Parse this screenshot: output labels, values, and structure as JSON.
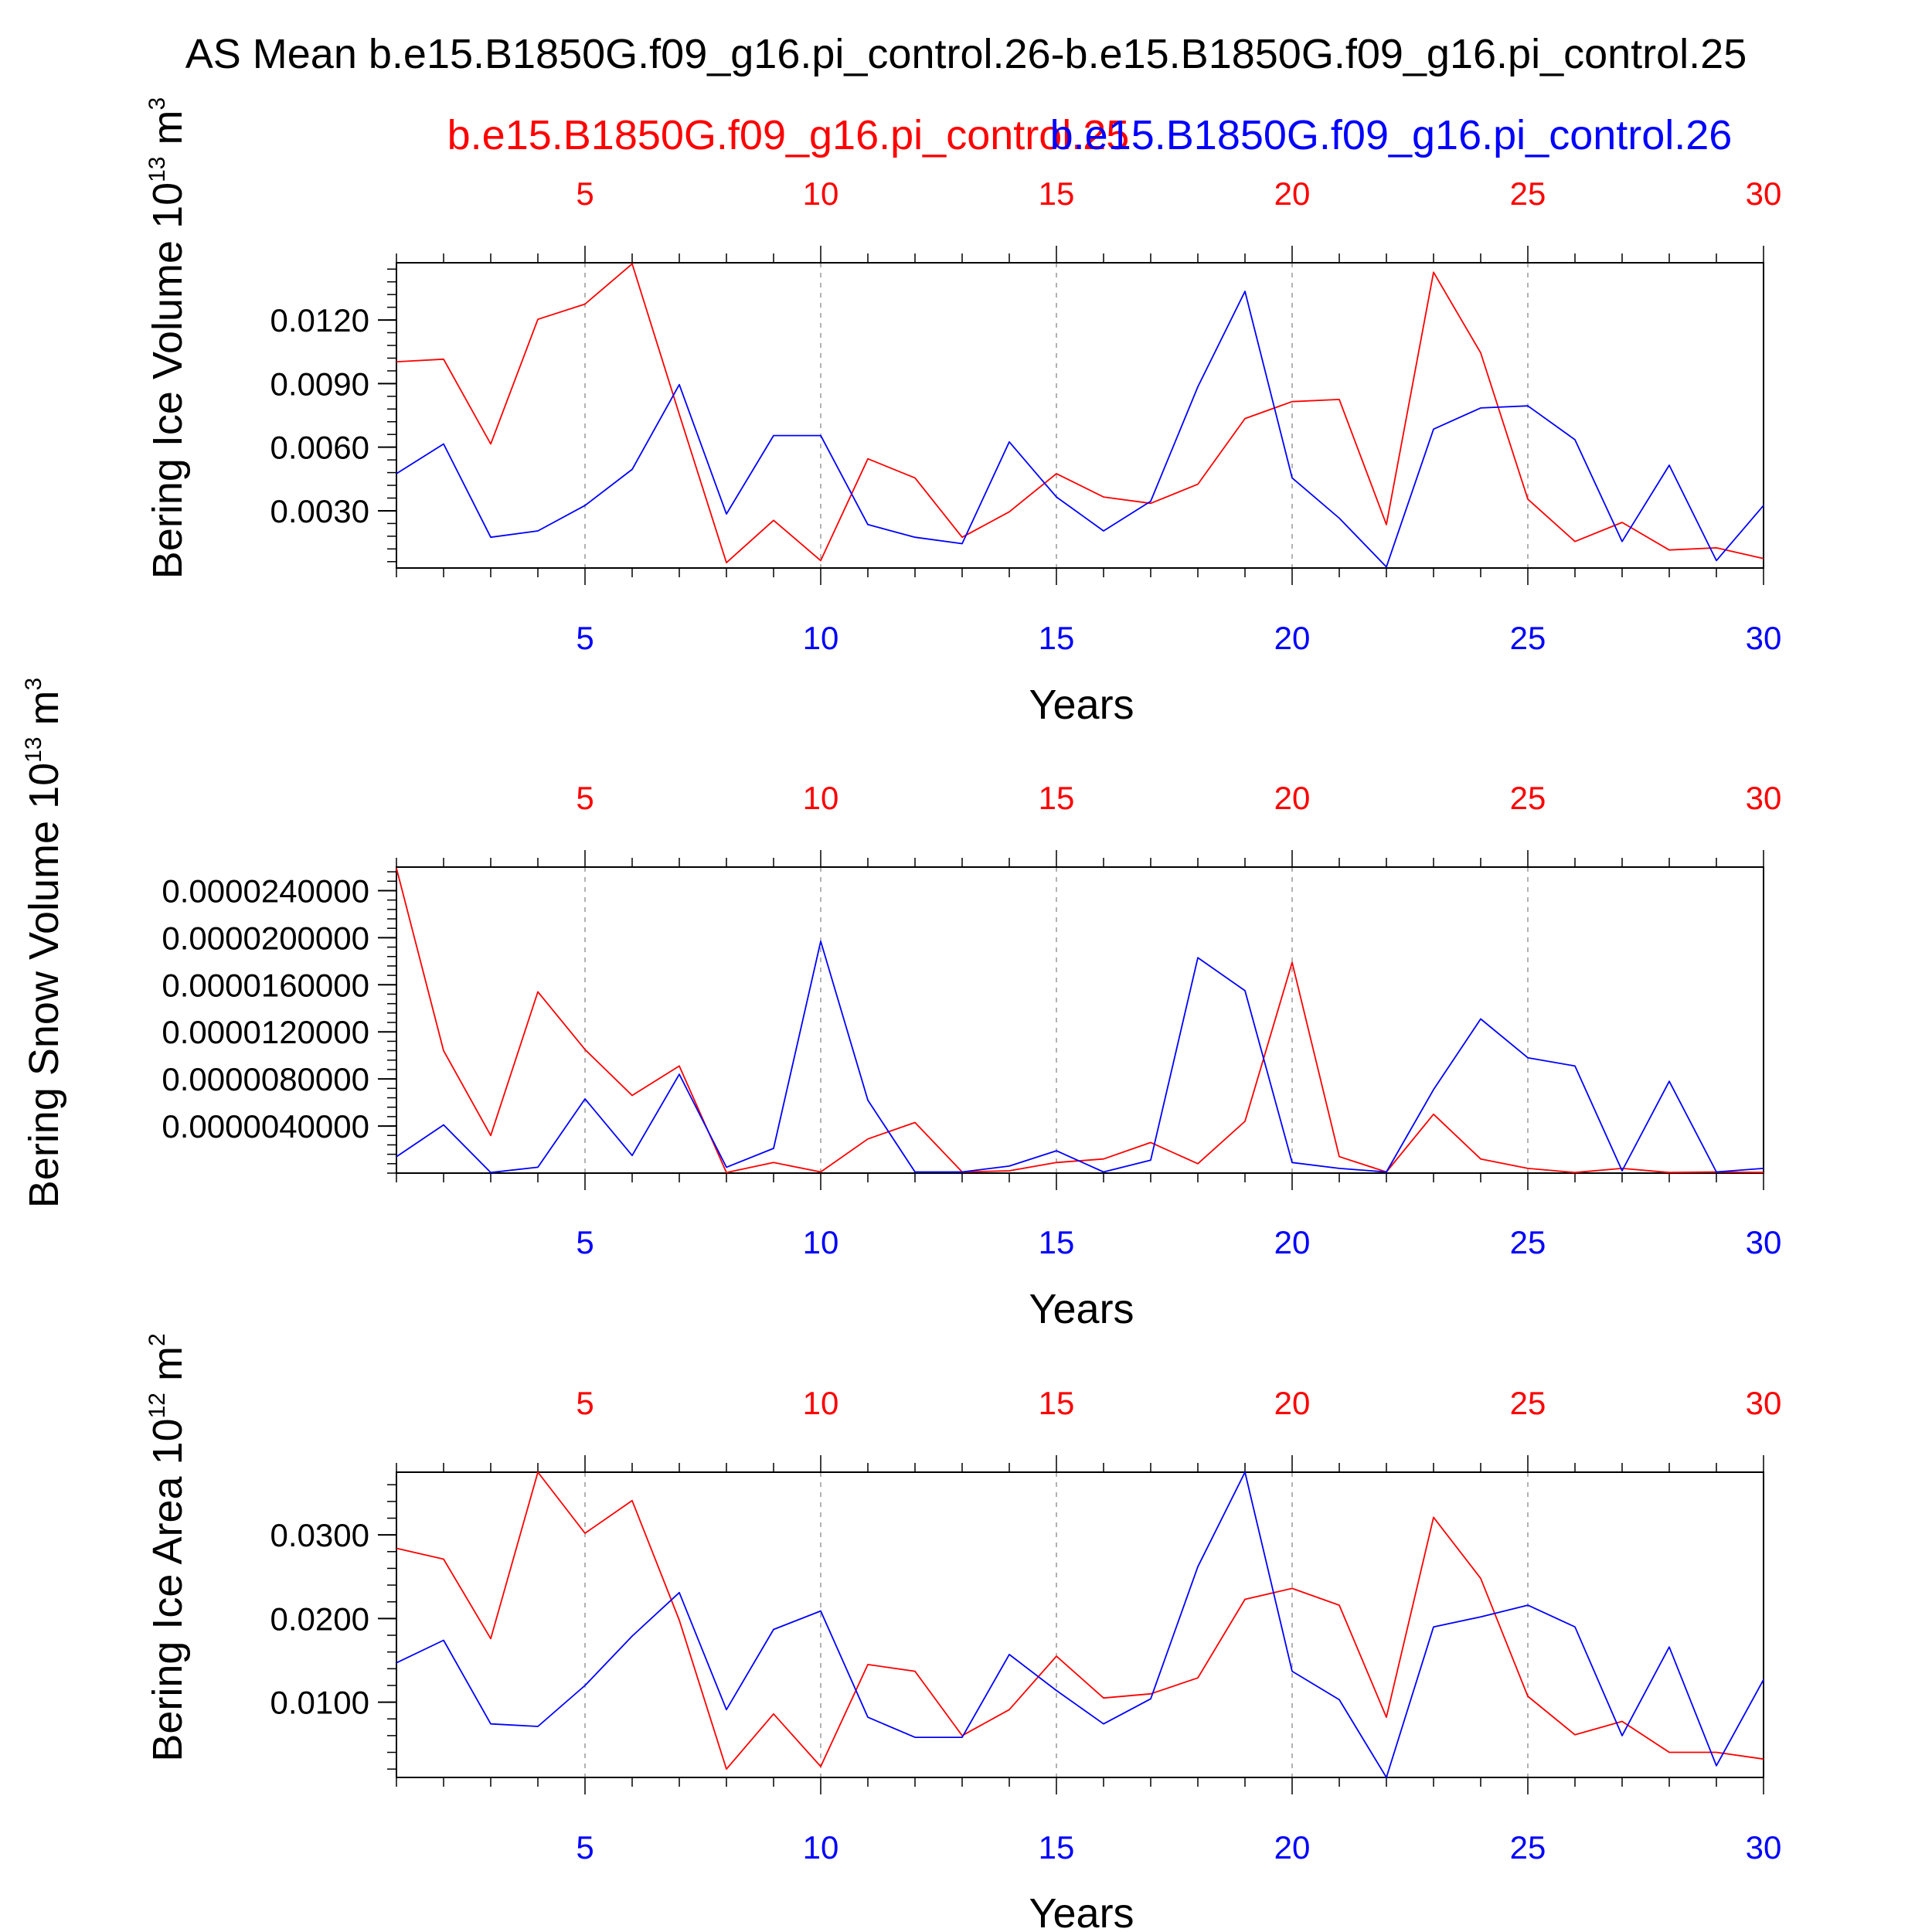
{
  "figure": {
    "title": "AS Mean b.e15.B1850G.f09_g16.pi_control.26-b.e15.B1850G.f09_g16.pi_control.25",
    "legend": {
      "red_label": "b.e15.B1850G.f09_g16.pi_control.25",
      "blue_label": "b.e15.B1850G.f09_g16.pi_control.26"
    },
    "colors": {
      "red": "#ff0000",
      "blue": "#0000ff",
      "axis": "#000000",
      "grid": "#999999"
    }
  },
  "chart_data": [
    {
      "type": "line",
      "title": "",
      "xlabel": "Years",
      "ylabel": "Bering Ice Volume 10",
      "ylabel_exp": "13",
      "ylabel_unit": " m",
      "ylabel_unit_exp": "3",
      "xlim": [
        1,
        30
      ],
      "ylim": [
        0.0003,
        0.0147
      ],
      "x_ticks": [
        "5",
        "10",
        "15",
        "20",
        "25",
        "30"
      ],
      "y_ticks": [
        {
          "value": 0.003,
          "label": "0.0030"
        },
        {
          "value": 0.006,
          "label": "0.0060"
        },
        {
          "value": 0.009,
          "label": "0.0090"
        },
        {
          "value": 0.012,
          "label": "0.0120"
        }
      ],
      "x": [
        1,
        2,
        3,
        4,
        5,
        6,
        7,
        8,
        9,
        10,
        11,
        12,
        13,
        14,
        15,
        16,
        17,
        18,
        19,
        20,
        21,
        22,
        23,
        24,
        25,
        26,
        27,
        28,
        29,
        30
      ],
      "series": [
        {
          "name": "b.e15.B1850G.f09_g16.pi_control.25",
          "color": "red",
          "values": [
            0.01003,
            0.01015,
            0.00615,
            0.01203,
            0.01275,
            0.01465,
            0.00755,
            0.00055,
            0.00255,
            0.00065,
            0.00545,
            0.00455,
            0.00175,
            0.00295,
            0.00475,
            0.00365,
            0.00335,
            0.00425,
            0.00735,
            0.00815,
            0.00825,
            0.00235,
            0.01425,
            0.01045,
            0.00355,
            0.00155,
            0.00245,
            0.00115,
            0.00125,
            0.00075
          ]
        },
        {
          "name": "b.e15.B1850G.f09_g16.pi_control.26",
          "color": "blue",
          "values": [
            0.00475,
            0.00615,
            0.00175,
            0.00205,
            0.00325,
            0.00495,
            0.00895,
            0.00285,
            0.00655,
            0.00655,
            0.00235,
            0.00175,
            0.00145,
            0.00625,
            0.00365,
            0.00205,
            0.00345,
            0.00885,
            0.01335,
            0.00455,
            0.00265,
            0.00035,
            0.00685,
            0.00785,
            0.00795,
            0.00635,
            0.00155,
            0.00515,
            0.00065,
            0.00325
          ]
        }
      ]
    },
    {
      "type": "line",
      "title": "",
      "xlabel": "Years",
      "ylabel": "Bering Snow Volume 10",
      "ylabel_exp": "13",
      "ylabel_unit": " m",
      "ylabel_unit_exp": "3",
      "xlim": [
        1,
        30
      ],
      "ylim": [
        0.0,
        2.6e-05
      ],
      "x_ticks": [
        "5",
        "10",
        "15",
        "20",
        "25",
        "30"
      ],
      "y_ticks": [
        {
          "value": 4e-06,
          "label": "0.0000040000"
        },
        {
          "value": 8e-06,
          "label": "0.0000080000"
        },
        {
          "value": 1.2e-05,
          "label": "0.0000120000"
        },
        {
          "value": 1.6e-05,
          "label": "0.0000160000"
        },
        {
          "value": 2e-05,
          "label": "0.0000200000"
        },
        {
          "value": 2.4e-05,
          "label": "0.0000240000"
        }
      ],
      "x": [
        1,
        2,
        3,
        4,
        5,
        6,
        7,
        8,
        9,
        10,
        11,
        12,
        13,
        14,
        15,
        16,
        17,
        18,
        19,
        20,
        21,
        22,
        23,
        24,
        25,
        26,
        27,
        28,
        29,
        30
      ],
      "series": [
        {
          "name": "b.e15.B1850G.f09_g16.pi_control.25",
          "color": "red",
          "values": [
            2.59e-05,
            1.04e-05,
            3.2e-06,
            1.54e-05,
            1.05e-05,
            6.6e-06,
            9.1e-06,
            5e-08,
            9e-07,
            1e-07,
            2.9e-06,
            4.3e-06,
            1e-07,
            2e-07,
            9e-07,
            1.2e-06,
            2.6e-06,
            8e-07,
            4.4e-06,
            1.79e-05,
            1.4e-06,
            1e-07,
            5e-06,
            1.2e-06,
            4e-07,
            5e-08,
            4e-07,
            5e-08,
            1e-07,
            5e-08
          ]
        },
        {
          "name": "b.e15.B1850G.f09_g16.pi_control.26",
          "color": "blue",
          "values": [
            1.4e-06,
            4.1e-06,
            5e-08,
            5e-07,
            6.3e-06,
            1.5e-06,
            8.4e-06,
            5e-07,
            2.1e-06,
            1.97e-05,
            6.2e-06,
            1e-07,
            1e-07,
            6e-07,
            1.9e-06,
            1e-07,
            1.1e-06,
            1.83e-05,
            1.55e-05,
            9e-07,
            4e-07,
            1e-07,
            7.1e-06,
            1.31e-05,
            9.8e-06,
            9.1e-06,
            2e-07,
            7.8e-06,
            1e-07,
            4e-07
          ]
        }
      ]
    },
    {
      "type": "line",
      "title": "",
      "xlabel": "Years",
      "ylabel": "Bering Ice Area 10",
      "ylabel_exp": "12",
      "ylabel_unit": " m",
      "ylabel_unit_exp": "2",
      "xlim": [
        1,
        30
      ],
      "ylim": [
        0.001,
        0.0375
      ],
      "x_ticks": [
        "5",
        "10",
        "15",
        "20",
        "25",
        "30"
      ],
      "y_ticks": [
        {
          "value": 0.01,
          "label": "0.0100"
        },
        {
          "value": 0.02,
          "label": "0.0200"
        },
        {
          "value": 0.03,
          "label": "0.0300"
        }
      ],
      "x": [
        1,
        2,
        3,
        4,
        5,
        6,
        7,
        8,
        9,
        10,
        11,
        12,
        13,
        14,
        15,
        16,
        17,
        18,
        19,
        20,
        21,
        22,
        23,
        24,
        25,
        26,
        27,
        28,
        29,
        30
      ],
      "series": [
        {
          "name": "b.e15.B1850G.f09_g16.pi_control.25",
          "color": "red",
          "values": [
            0.0284,
            0.0271,
            0.0176,
            0.0375,
            0.0302,
            0.0341,
            0.0198,
            0.002,
            0.0086,
            0.0023,
            0.0145,
            0.0137,
            0.006,
            0.0091,
            0.0155,
            0.0105,
            0.011,
            0.0129,
            0.0223,
            0.0236,
            0.0216,
            0.0082,
            0.0321,
            0.0248,
            0.0107,
            0.0061,
            0.0077,
            0.004,
            0.004,
            0.0032
          ]
        },
        {
          "name": "b.e15.B1850G.f09_g16.pi_control.26",
          "color": "blue",
          "values": [
            0.0147,
            0.0174,
            0.0074,
            0.0071,
            0.012,
            0.0179,
            0.0231,
            0.0091,
            0.0187,
            0.0209,
            0.0082,
            0.0058,
            0.0058,
            0.0157,
            0.0114,
            0.0074,
            0.0104,
            0.0262,
            0.0375,
            0.0137,
            0.0103,
            0.001,
            0.019,
            0.0202,
            0.0216,
            0.019,
            0.006,
            0.0166,
            0.0024,
            0.0127
          ]
        }
      ]
    }
  ]
}
